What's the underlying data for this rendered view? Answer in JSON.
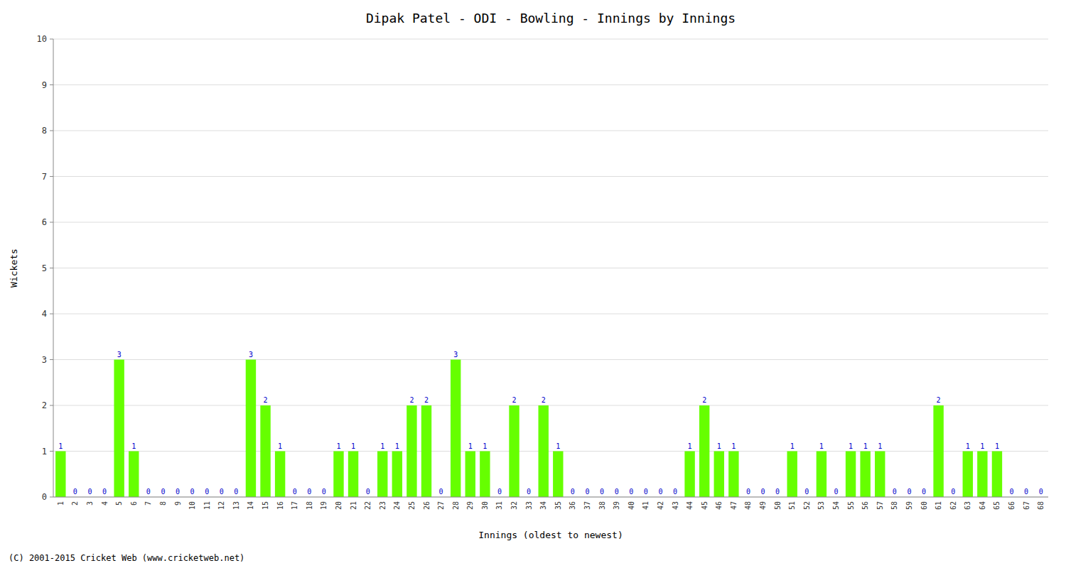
{
  "chart_data": {
    "type": "bar",
    "title": "Dipak Patel - ODI - Bowling - Innings by Innings",
    "x_label": "Innings (oldest to newest)",
    "y_label": "Wickets",
    "categories": [
      "1",
      "2",
      "3",
      "4",
      "5",
      "6",
      "7",
      "8",
      "9",
      "10",
      "11",
      "12",
      "13",
      "14",
      "15",
      "16",
      "17",
      "18",
      "19",
      "20",
      "21",
      "22",
      "23",
      "24",
      "25",
      "26",
      "27",
      "28",
      "29",
      "30",
      "31",
      "32",
      "33",
      "34",
      "35",
      "36",
      "37",
      "38",
      "39",
      "40",
      "41",
      "42",
      "43",
      "44",
      "45",
      "46",
      "47",
      "48",
      "49",
      "50",
      "51",
      "52",
      "53",
      "54",
      "55",
      "56",
      "57",
      "58",
      "59",
      "60",
      "61",
      "62",
      "63",
      "64",
      "65",
      "66",
      "67",
      "68"
    ],
    "values": [
      1,
      0,
      0,
      0,
      3,
      1,
      0,
      0,
      0,
      0,
      0,
      0,
      0,
      3,
      2,
      1,
      0,
      0,
      0,
      1,
      1,
      0,
      1,
      1,
      2,
      2,
      0,
      3,
      1,
      1,
      0,
      2,
      0,
      2,
      1,
      0,
      0,
      0,
      0,
      0,
      0,
      0,
      0,
      1,
      2,
      1,
      1,
      0,
      0,
      0,
      1,
      0,
      1,
      0,
      1,
      1,
      1,
      0,
      0,
      0,
      2,
      0,
      1,
      1,
      1,
      0,
      0,
      0
    ],
    "color": "#66ff00",
    "ylim": [
      0,
      10
    ],
    "yticks": [
      0,
      1,
      2,
      3,
      4,
      5,
      6,
      7,
      8,
      9,
      10
    ],
    "grid": true,
    "data_labels": true,
    "annotations": [
      "(C) 2001-2015 Cricket Web (www.cricketweb.net)"
    ]
  }
}
